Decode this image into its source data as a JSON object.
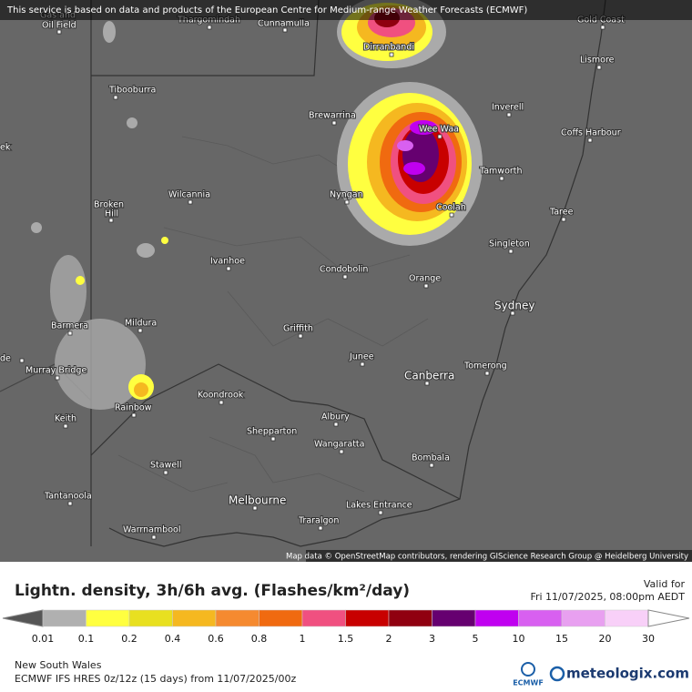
{
  "banner": "This service is based on data and products of the European Centre for Medium-range Weather Forecasts (ECMWF)",
  "attribution": "Map data © OpenStreetMap contributors, rendering GIScience Research Group @ Heidelberg University",
  "places": [
    "Gas and",
    "Oil Field",
    "Thargomindah",
    "Cunnamulla",
    "Dirranbandi",
    "Gold Coast",
    "Lismore",
    "Tibooburra",
    "Brewarrina",
    "Inverell",
    "Wee Waa",
    "Coffs Harbour",
    "ek",
    "Tamworth",
    "Broken",
    "Hill",
    "Wilcannia",
    "Nyngan",
    "Coolah",
    "Taree",
    "Singleton",
    "Ivanhoe",
    "Condobolin",
    "Orange",
    "Sydney",
    "Barmera",
    "Mildura",
    "Griffith",
    "de",
    "Murray Bridge",
    "Junee",
    "Canberra",
    "Tomerong",
    "Koondrook",
    "Rainbow",
    "Keith",
    "Albury",
    "Shepparton",
    "Wangaratta",
    "Bombala",
    "Stawell",
    "Tantanoola",
    "Melbourne",
    "Lakes Entrance",
    "Traralgon",
    "Warrnambool"
  ],
  "legend": {
    "title": "Lightn. density, 3h/6h avg. (Flashes/km²/day)",
    "valid_label": "Valid for",
    "valid_time": "Fri 11/07/2025, 08:00pm AEDT",
    "ticks": [
      0.01,
      0.1,
      0.2,
      0.4,
      0.6,
      0.8,
      1,
      1.5,
      2,
      3,
      5,
      10,
      15,
      20,
      30
    ],
    "colors": [
      "#555555",
      "#b0b0b0",
      "#ffff40",
      "#e8e020",
      "#f5b820",
      "#f58a30",
      "#f06a10",
      "#f05080",
      "#c80000",
      "#900010",
      "#660070",
      "#c000f0",
      "#d860f0",
      "#e8a0f0",
      "#f8d0f8",
      "#ffffff"
    ]
  },
  "footer": {
    "region": "New South Wales",
    "model": "ECMWF IFS HRES 0z/12z (15 days) from 11/07/2025/00z",
    "ecmwf_logo": "ECMWF",
    "brand": "meteologix.com"
  }
}
